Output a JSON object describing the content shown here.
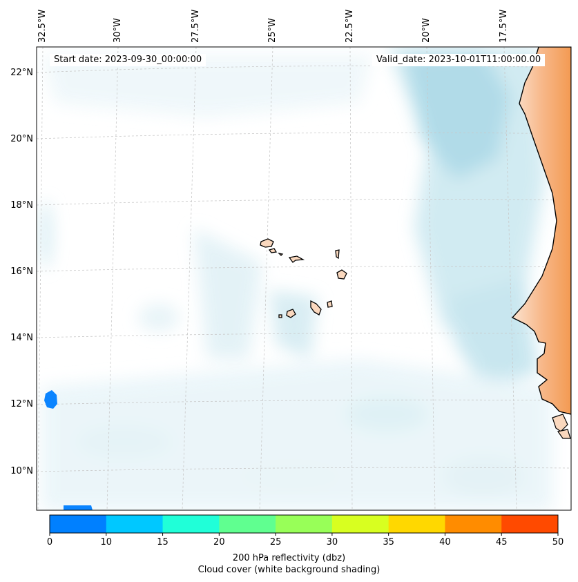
{
  "map": {
    "start_date": "Start date: 2023-09-30_00:00:00",
    "valid_date": "Valid_date: 2023-10-01T11:00:00.00",
    "lat_labels": [
      "22°N",
      "20°N",
      "18°N",
      "16°N",
      "14°N",
      "12°N",
      "10°N"
    ],
    "lon_labels": [
      "32.5°W",
      "30°W",
      "27.5°W",
      "25°W",
      "22.5°W",
      "20°W",
      "17.5°W"
    ]
  },
  "colorbar": {
    "ticks": [
      "0",
      "10",
      "15",
      "20",
      "25",
      "30",
      "35",
      "40",
      "45",
      "50"
    ],
    "colors": [
      "#0080ff",
      "#00c8ff",
      "#20ffd8",
      "#60ff90",
      "#98ff58",
      "#d8ff20",
      "#ffd800",
      "#ff8c00",
      "#ff4a00"
    ],
    "label": "200 hPa reflectivity (dbz)",
    "sublabel": "Cloud cover (white background shading)"
  },
  "colors": {
    "cloud": "#a8d8e6",
    "land_hot": "#f4a05a",
    "land_light": "#fad8be",
    "coast": "#000000"
  }
}
